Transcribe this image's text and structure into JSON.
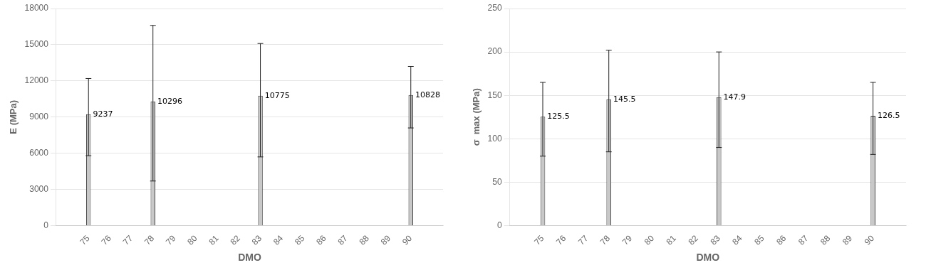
{
  "chart_data": [
    {
      "type": "bar",
      "xlabel": "DMO",
      "ylabel": "E (MPa)",
      "x": [
        75,
        78,
        83,
        90
      ],
      "values": [
        9237,
        10296,
        10775,
        10828
      ],
      "error_high": [
        12200,
        16600,
        15100,
        13200
      ],
      "error_low": [
        5800,
        3700,
        5700,
        8100
      ],
      "color": "#c8c8c8",
      "data_labels": true,
      "xlim": [
        73.5,
        91.5
      ],
      "xticks": [
        75,
        76,
        77,
        78,
        79,
        80,
        81,
        82,
        83,
        84,
        85,
        86,
        87,
        88,
        89,
        90
      ],
      "ylim": [
        0,
        18000
      ],
      "yticks": [
        0,
        3000,
        6000,
        9000,
        12000,
        15000,
        18000
      ],
      "grid": "y"
    },
    {
      "type": "bar",
      "xlabel": "DMO",
      "ylabel": "σ  max (MPa)",
      "x": [
        75,
        78,
        83,
        90
      ],
      "values": [
        125.5,
        145.5,
        147.9,
        126.5
      ],
      "error_high": [
        165,
        202,
        200,
        165
      ],
      "error_low": [
        80,
        85,
        90,
        82
      ],
      "color": "#c8c8c8",
      "data_labels": true,
      "xlim": [
        73.5,
        91.5
      ],
      "xticks": [
        75,
        76,
        77,
        78,
        79,
        80,
        81,
        82,
        83,
        84,
        85,
        86,
        87,
        88,
        89,
        90
      ],
      "ylim": [
        0,
        250
      ],
      "yticks": [
        0,
        50,
        100,
        150,
        200,
        250
      ],
      "grid": "y"
    }
  ]
}
